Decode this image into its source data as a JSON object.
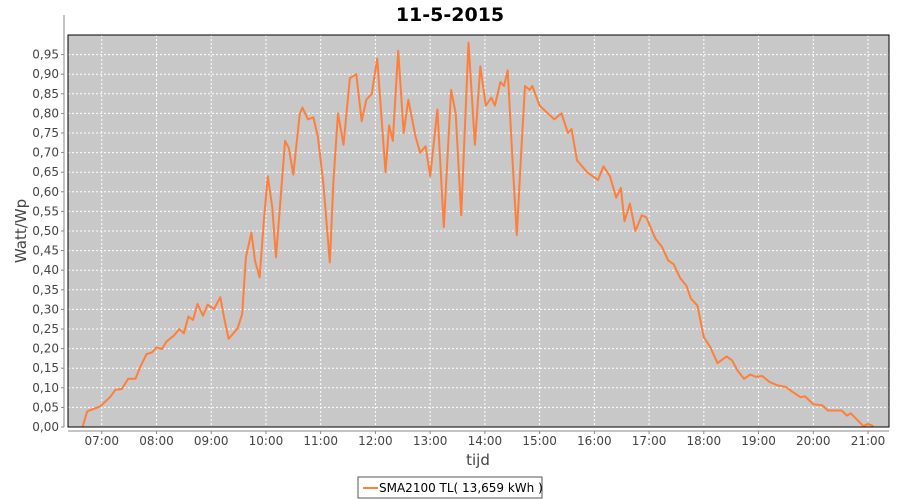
{
  "chart_data": {
    "type": "line",
    "title": "11-5-2015",
    "xlabel": "tijd",
    "ylabel": "Watt/Wp",
    "xlim": [
      "06:23",
      "21:23"
    ],
    "ylim": [
      0,
      1.0
    ],
    "x_ticks": [
      "07:00",
      "08:00",
      "09:00",
      "10:00",
      "11:00",
      "12:00",
      "13:00",
      "14:00",
      "15:00",
      "16:00",
      "17:00",
      "18:00",
      "19:00",
      "20:00",
      "21:00"
    ],
    "y_ticks": [
      "0,00",
      "0,05",
      "0,10",
      "0,15",
      "0,20",
      "0,25",
      "0,30",
      "0,35",
      "0,40",
      "0,45",
      "0,50",
      "0,55",
      "0,60",
      "0,65",
      "0,70",
      "0,75",
      "0,80",
      "0,85",
      "0,90",
      "0,95"
    ],
    "grid": true,
    "legend_position": "bottom",
    "colors": {
      "series": "#ff7f3a",
      "plot_background": "#c8c8c8",
      "grid": "#ffffff"
    },
    "series": [
      {
        "name": "SMA2100 TL( 13,659 kWh )",
        "x": [
          "06:39",
          "06:44",
          "06:51",
          "06:58",
          "07:09",
          "07:15",
          "07:22",
          "07:29",
          "07:37",
          "07:42",
          "07:49",
          "07:55",
          "08:00",
          "08:06",
          "08:11",
          "08:19",
          "08:25",
          "08:30",
          "08:35",
          "08:40",
          "08:45",
          "08:51",
          "08:56",
          "09:03",
          "09:10",
          "09:14",
          "09:19",
          "09:24",
          "09:29",
          "09:34",
          "09:38",
          "09:44",
          "09:48",
          "09:53",
          "09:58",
          "10:02",
          "10:07",
          "10:11",
          "10:15",
          "10:21",
          "10:25",
          "10:30",
          "10:33",
          "10:37",
          "10:40",
          "10:46",
          "10:52",
          "10:57",
          "11:03",
          "11:10",
          "11:14",
          "11:19",
          "11:25",
          "11:32",
          "11:39",
          "11:45",
          "11:50",
          "11:56",
          "12:02",
          "12:11",
          "12:15",
          "12:19",
          "12:25",
          "12:31",
          "12:36",
          "12:44",
          "12:49",
          "12:55",
          "13:00",
          "13:08",
          "13:15",
          "13:23",
          "13:28",
          "13:34",
          "13:42",
          "13:49",
          "13:55",
          "14:01",
          "14:07",
          "14:11",
          "14:17",
          "14:21",
          "14:25",
          "14:30",
          "14:35",
          "14:40",
          "14:44",
          "14:49",
          "14:52",
          "15:00",
          "15:16",
          "15:24",
          "15:31",
          "15:35",
          "15:41",
          "15:52",
          "16:04",
          "16:10",
          "16:17",
          "16:24",
          "16:29",
          "16:33",
          "16:39",
          "16:45",
          "16:52",
          "16:57",
          "17:07",
          "17:14",
          "17:21",
          "17:27",
          "17:34",
          "17:41",
          "17:46",
          "17:53",
          "18:00",
          "18:07",
          "18:15",
          "18:25",
          "18:31",
          "18:37",
          "18:44",
          "18:51",
          "18:57",
          "19:04",
          "19:12",
          "19:21",
          "19:30",
          "19:37",
          "19:46",
          "19:51",
          "20:00",
          "20:10",
          "20:16",
          "20:31",
          "20:37",
          "20:41",
          "20:47",
          "20:55",
          "21:00",
          "21:06"
        ],
        "values": [
          0.0,
          0.04,
          0.046,
          0.052,
          0.076,
          0.095,
          0.097,
          0.123,
          0.123,
          0.152,
          0.186,
          0.19,
          0.203,
          0.199,
          0.218,
          0.233,
          0.25,
          0.239,
          0.282,
          0.273,
          0.314,
          0.284,
          0.312,
          0.301,
          0.331,
          0.28,
          0.225,
          0.238,
          0.252,
          0.289,
          0.433,
          0.496,
          0.424,
          0.382,
          0.534,
          0.64,
          0.56,
          0.433,
          0.551,
          0.73,
          0.712,
          0.644,
          0.712,
          0.797,
          0.815,
          0.785,
          0.79,
          0.74,
          0.62,
          0.42,
          0.63,
          0.8,
          0.72,
          0.89,
          0.9,
          0.78,
          0.835,
          0.85,
          0.94,
          0.65,
          0.77,
          0.73,
          0.96,
          0.75,
          0.835,
          0.74,
          0.7,
          0.716,
          0.64,
          0.81,
          0.51,
          0.86,
          0.8,
          0.54,
          0.98,
          0.72,
          0.92,
          0.82,
          0.84,
          0.82,
          0.88,
          0.87,
          0.91,
          0.69,
          0.49,
          0.71,
          0.87,
          0.86,
          0.87,
          0.82,
          0.785,
          0.8,
          0.75,
          0.76,
          0.68,
          0.65,
          0.63,
          0.665,
          0.64,
          0.585,
          0.61,
          0.525,
          0.57,
          0.5,
          0.54,
          0.535,
          0.48,
          0.46,
          0.425,
          0.415,
          0.38,
          0.36,
          0.327,
          0.31,
          0.229,
          0.204,
          0.163,
          0.18,
          0.17,
          0.144,
          0.123,
          0.134,
          0.128,
          0.13,
          0.115,
          0.106,
          0.102,
          0.09,
          0.076,
          0.078,
          0.058,
          0.055,
          0.042,
          0.042,
          0.029,
          0.035,
          0.021,
          0.002,
          0.008,
          0.002
        ]
      }
    ]
  }
}
